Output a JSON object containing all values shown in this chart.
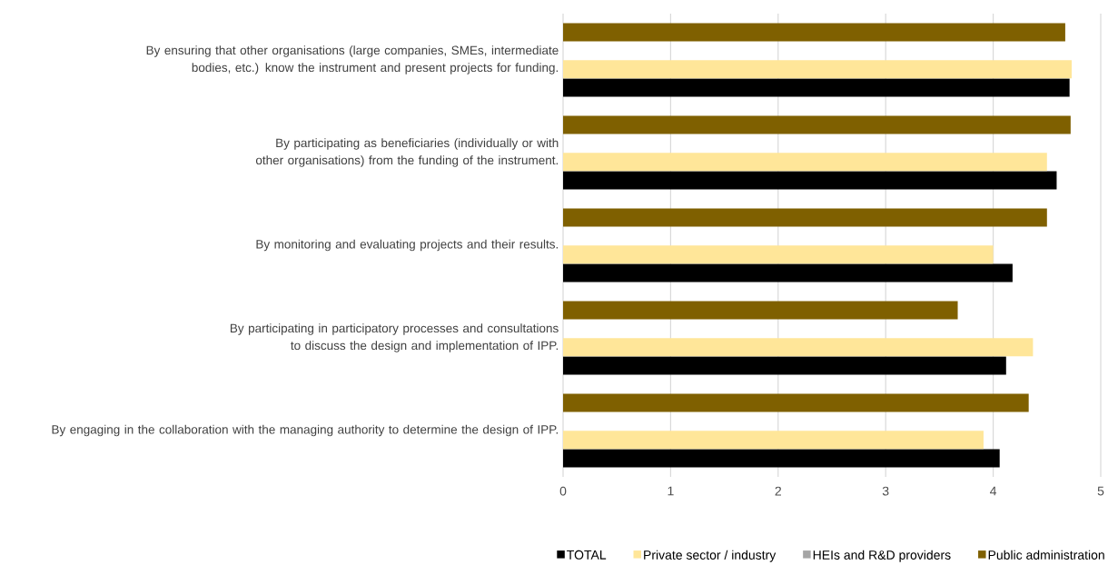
{
  "chart_data": {
    "type": "bar",
    "orientation": "horizontal",
    "categories": [
      "By ensuring that other organisations (large companies, SMEs, intermediate bodies, etc.) know the instrument and present projects for funding.",
      "By participating as beneficiaries (individually or with other organisations) from the funding of the instrument.",
      "By monitoring and evaluating projects and their results.",
      "By participating in participatory processes and consultations to discuss the design and implementation of IPP.",
      "By engaging in the collaboration with the managing authority to determine the design of IPP."
    ],
    "series": [
      {
        "name": "TOTAL",
        "color": "#000000",
        "values": [
          4.71,
          4.59,
          4.18,
          4.12,
          4.06
        ]
      },
      {
        "name": "Private sector / industry",
        "color": "#ffe699",
        "values": [
          4.73,
          4.5,
          4.0,
          4.37,
          3.91
        ]
      },
      {
        "name": "HEIs and R&D providers",
        "color": "#a5a5a5",
        "values": [
          null,
          null,
          null,
          null,
          null
        ]
      },
      {
        "name": "Public administration",
        "color": "#7f6000",
        "values": [
          4.67,
          4.72,
          4.5,
          3.67,
          4.33
        ]
      }
    ],
    "xlim": [
      0,
      5
    ],
    "xticks": [
      0,
      1,
      2,
      3,
      4,
      5
    ],
    "grid": "x",
    "legend": "bottom"
  }
}
